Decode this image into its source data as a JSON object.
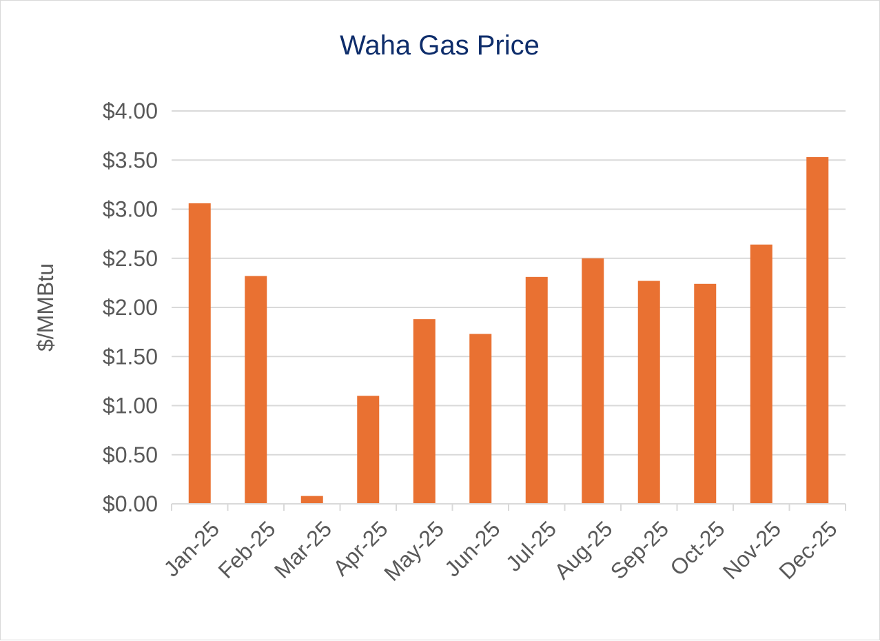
{
  "chart_data": {
    "type": "bar",
    "title": "Waha Gas Price",
    "xlabel": "",
    "ylabel": "$/MMBtu",
    "ylim": [
      0,
      4
    ],
    "ytick_step": 0.5,
    "y_tick_labels": [
      "$0.00",
      "$0.50",
      "$1.00",
      "$1.50",
      "$2.00",
      "$2.50",
      "$3.00",
      "$3.50",
      "$4.00"
    ],
    "categories": [
      "Jan-25",
      "Feb-25",
      "Mar-25",
      "Apr-25",
      "May-25",
      "Jun-25",
      "Jul-25",
      "Aug-25",
      "Sep-25",
      "Oct-25",
      "Nov-25",
      "Dec-25"
    ],
    "values": [
      3.06,
      2.32,
      0.08,
      1.1,
      1.88,
      1.73,
      2.31,
      2.5,
      2.27,
      2.24,
      2.64,
      3.53
    ],
    "grid": true,
    "legend": "none",
    "colors": {
      "bar": "#e97132",
      "title": "#0e2d6b",
      "text": "#595959",
      "grid": "#d9d9d9"
    }
  }
}
